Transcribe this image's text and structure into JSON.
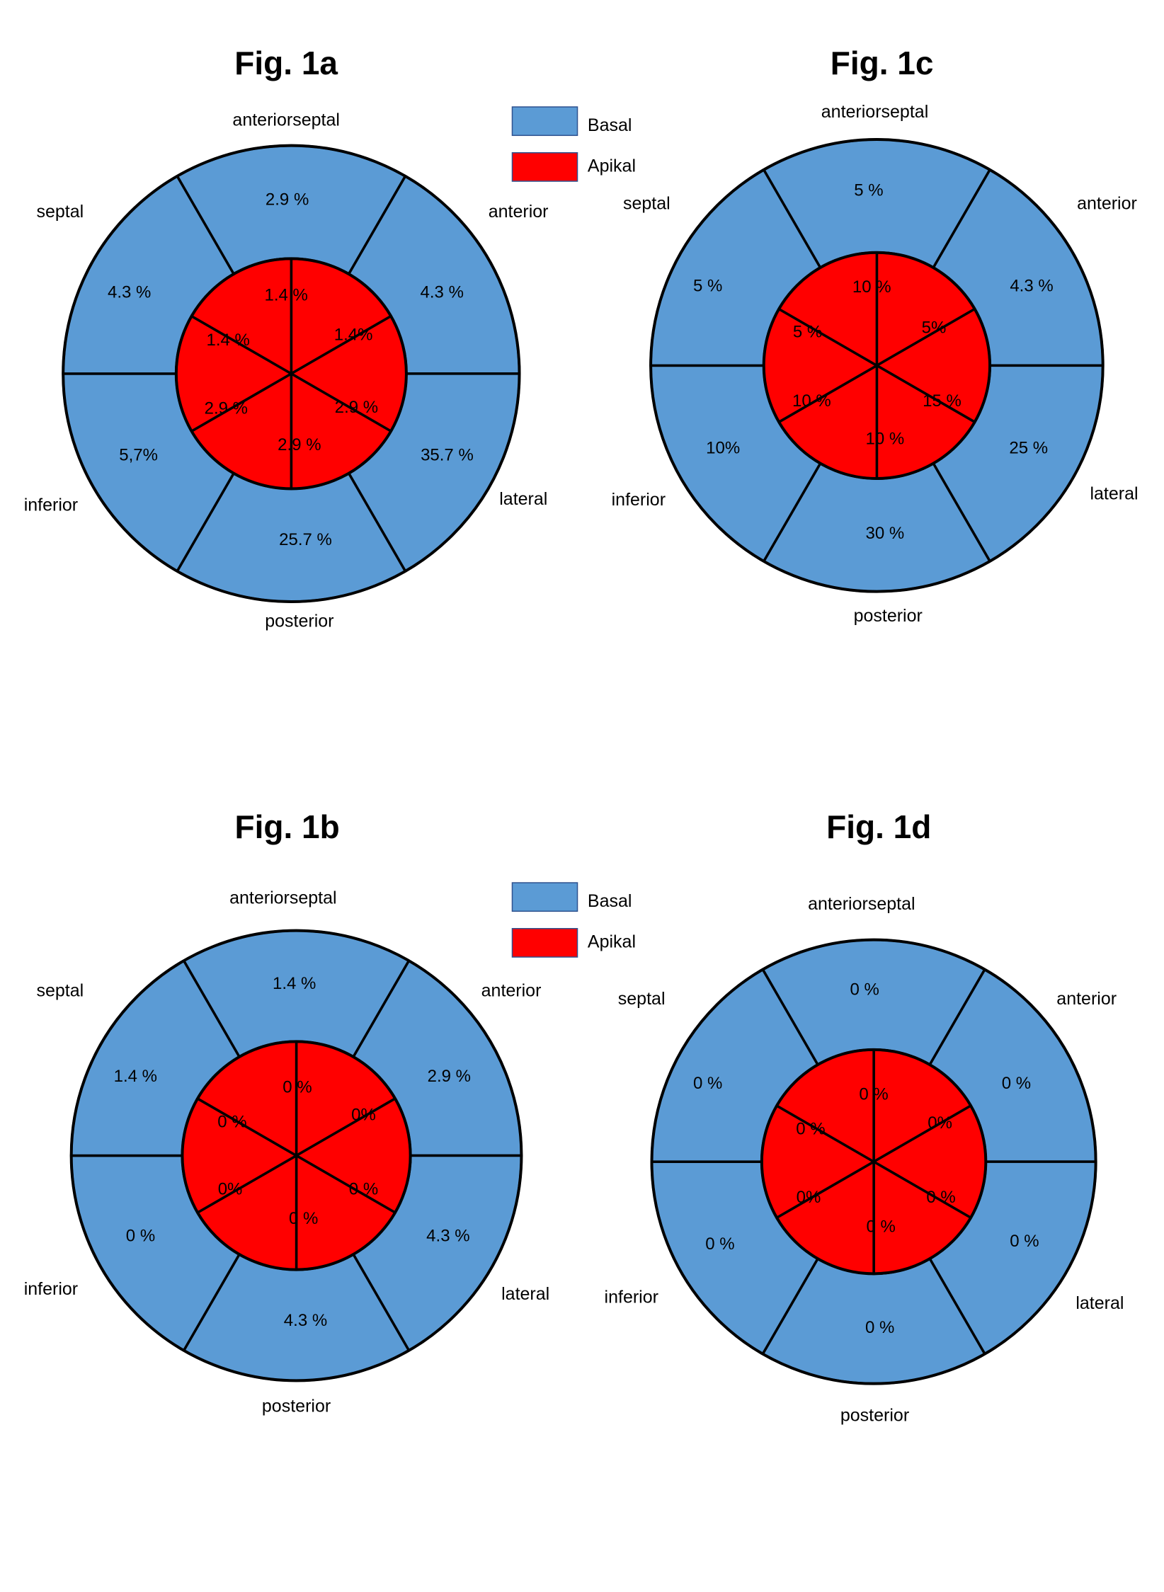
{
  "colors": {
    "basal": "#5B9BD5",
    "apical": "#FF0000",
    "outline": "#000000"
  },
  "legend": {
    "basal": "Basal",
    "apical": "Apikal"
  },
  "chart_data": [
    {
      "type": "bullseye",
      "title": "Fig. 1a",
      "segment_order": [
        "anteriorseptal",
        "anterior",
        "lateral",
        "posterior",
        "inferior",
        "septal"
      ],
      "direction_labels": {
        "anteriorseptal": "anteriorseptal",
        "anterior": "anterior",
        "lateral": "lateral",
        "posterior": "posterior",
        "inferior": "inferior",
        "septal": "septal"
      },
      "series": [
        {
          "name": "Basal",
          "values": [
            "2.9 %",
            "4.3 %",
            "35.7 %",
            "25.7 %",
            "5,7%",
            "4.3 %"
          ]
        },
        {
          "name": "Apikal",
          "values": [
            "1.4 %",
            "1.4%",
            "2.9 %",
            "2.9 %",
            "2.9 %",
            "1.4 %"
          ]
        }
      ]
    },
    {
      "type": "bullseye",
      "title": "Fig. 1b",
      "segment_order": [
        "anteriorseptal",
        "anterior",
        "lateral",
        "posterior",
        "inferior",
        "septal"
      ],
      "direction_labels": {
        "anteriorseptal": "anteriorseptal",
        "anterior": "anterior",
        "lateral": "lateral",
        "posterior": "posterior",
        "inferior": "inferior",
        "septal": "septal"
      },
      "series": [
        {
          "name": "Basal",
          "values": [
            "1.4 %",
            "2.9 %",
            "4.3 %",
            "4.3 %",
            "0 %",
            "1.4 %"
          ]
        },
        {
          "name": "Apikal",
          "values": [
            "0 %",
            "0%",
            "0 %",
            "0 %",
            "0%",
            "0 %"
          ]
        }
      ]
    },
    {
      "type": "bullseye",
      "title": "Fig. 1c",
      "segment_order": [
        "anteriorseptal",
        "anterior",
        "lateral",
        "posterior",
        "inferior",
        "septal"
      ],
      "direction_labels": {
        "anteriorseptal": "anteriorseptal",
        "anterior": "anterior",
        "lateral": "lateral",
        "posterior": "posterior",
        "inferior": "inferior",
        "septal": "septal"
      },
      "series": [
        {
          "name": "Basal",
          "values": [
            "5 %",
            "4.3 %",
            "25 %",
            "30 %",
            "10%",
            "5 %"
          ]
        },
        {
          "name": "Apikal",
          "values": [
            "10 %",
            "5%",
            "15 %",
            "10 %",
            "10 %",
            "5 %"
          ]
        }
      ]
    },
    {
      "type": "bullseye",
      "title": "Fig. 1d",
      "segment_order": [
        "anteriorseptal",
        "anterior",
        "lateral",
        "posterior",
        "inferior",
        "septal"
      ],
      "direction_labels": {
        "anteriorseptal": "anteriorseptal",
        "anterior": "anterior",
        "lateral": "lateral",
        "posterior": "posterior",
        "inferior": "inferior",
        "septal": "septal"
      },
      "series": [
        {
          "name": "Basal",
          "values": [
            "0 %",
            "0 %",
            "0 %",
            "0 %",
            "0 %",
            "0 %"
          ]
        },
        {
          "name": "Apikal",
          "values": [
            "0 %",
            "0%",
            "0 %",
            "0 %",
            "0%",
            "0 %"
          ]
        }
      ]
    }
  ]
}
